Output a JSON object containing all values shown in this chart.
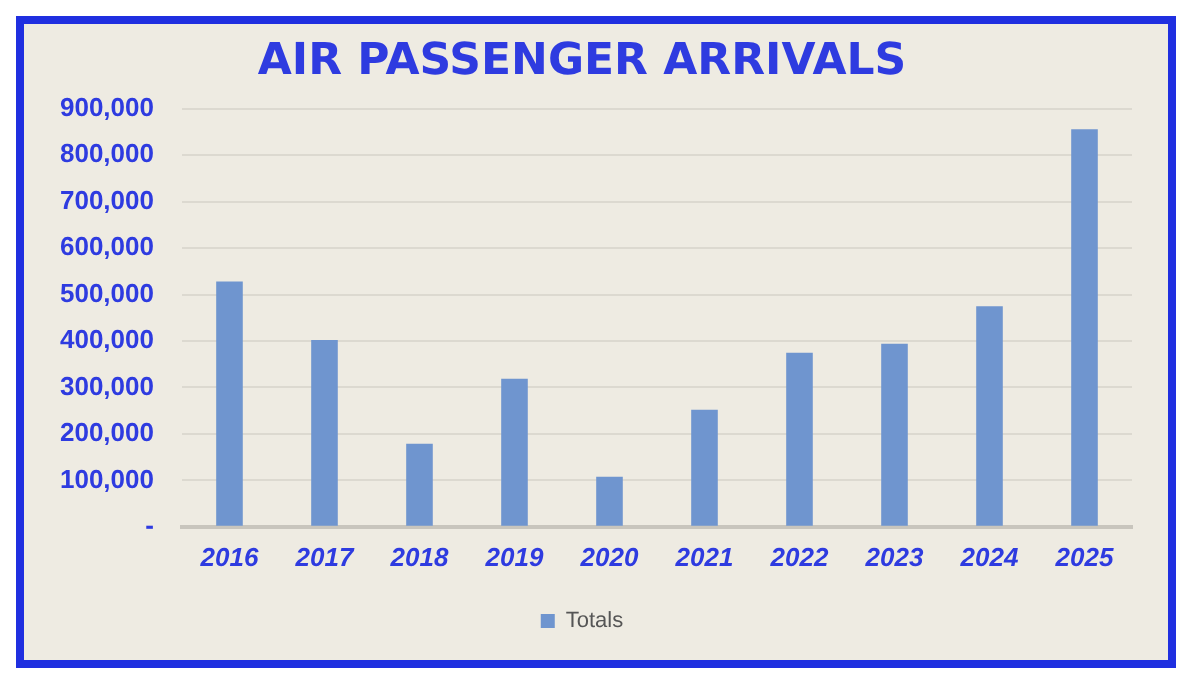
{
  "chart_data": {
    "type": "bar",
    "title": "AIR PASSENGER ARRIVALS",
    "categories": [
      "2016",
      "2017",
      "2018",
      "2019",
      "2020",
      "2021",
      "2022",
      "2023",
      "2024",
      "2025"
    ],
    "series": [
      {
        "name": "Totals",
        "color": "#6f95cf",
        "values": [
          528000,
          402000,
          179000,
          319000,
          108000,
          252000,
          375000,
          394000,
          475000,
          856000
        ]
      }
    ],
    "ylim": [
      0,
      900000
    ],
    "yticks": [
      {
        "value": 0,
        "label": "-"
      },
      {
        "value": 100000,
        "label": "100,000"
      },
      {
        "value": 200000,
        "label": "200,000"
      },
      {
        "value": 300000,
        "label": "300,000"
      },
      {
        "value": 400000,
        "label": "400,000"
      },
      {
        "value": 500000,
        "label": "500,000"
      },
      {
        "value": 600000,
        "label": "600,000"
      },
      {
        "value": 700000,
        "label": "700,000"
      },
      {
        "value": 800000,
        "label": "800,000"
      },
      {
        "value": 900000,
        "label": "900,000"
      }
    ],
    "grid": "y",
    "legend": "bottom"
  }
}
